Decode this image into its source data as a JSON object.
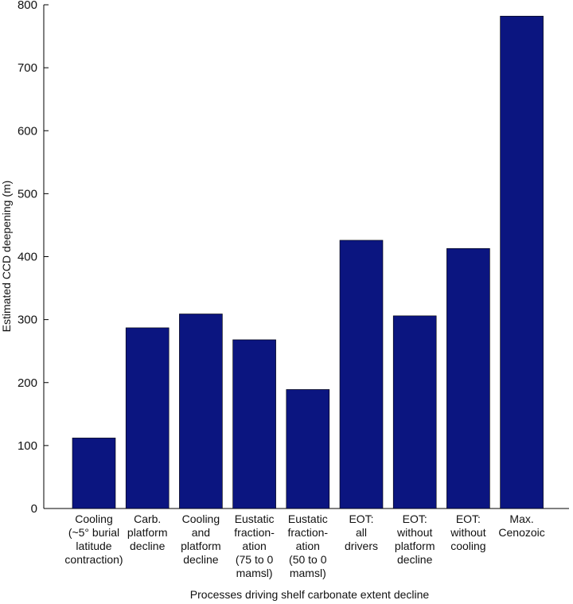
{
  "chart_data": {
    "type": "bar",
    "title": "",
    "xlabel": "Processes driving shelf carbonate extent decline",
    "ylabel": "Estimated CCD deepening (m)",
    "ylim": [
      0,
      800
    ],
    "yticks": [
      0,
      100,
      200,
      300,
      400,
      500,
      600,
      700,
      800
    ],
    "grid": false,
    "legend": "none",
    "bar_color": "#0b1580",
    "categories": [
      [
        "Cooling",
        "(~5° burial",
        "latitude",
        "contraction)"
      ],
      [
        "Carb.",
        "platform",
        "decline"
      ],
      [
        "Cooling",
        "and",
        "platform",
        "decline"
      ],
      [
        "Eustatic",
        "fraction-",
        "ation",
        "(75 to 0",
        "mamsl)"
      ],
      [
        "Eustatic",
        "fraction-",
        "ation",
        "(50 to 0",
        "mamsl)"
      ],
      [
        "EOT:",
        "all",
        "drivers"
      ],
      [
        "EOT:",
        "without",
        "platform",
        "decline"
      ],
      [
        "EOT:",
        "without",
        "cooling"
      ],
      [
        "Max.",
        "Cenozoic"
      ]
    ],
    "values": [
      112,
      287,
      309,
      268,
      189,
      426,
      306,
      413,
      782
    ]
  }
}
